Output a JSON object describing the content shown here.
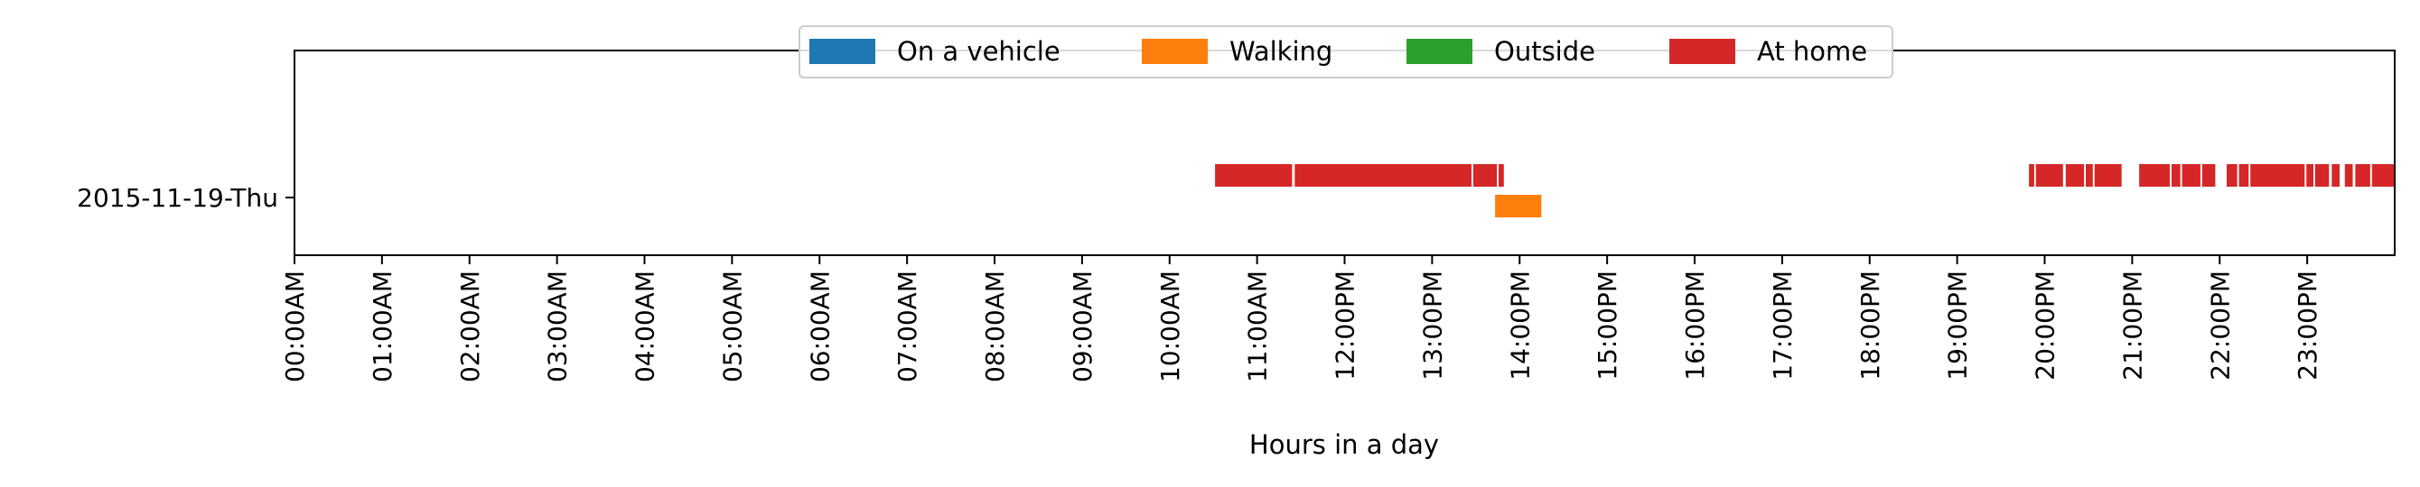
{
  "chart_data": {
    "type": "timeline",
    "xlabel": "Hours in a day",
    "ylabel": "",
    "xlim": [
      0,
      24
    ],
    "rows": [
      "2015-11-19-Thu"
    ],
    "x_ticks": [
      {
        "value": 0,
        "label": "00:00AM"
      },
      {
        "value": 1,
        "label": "01:00AM"
      },
      {
        "value": 2,
        "label": "02:00AM"
      },
      {
        "value": 3,
        "label": "03:00AM"
      },
      {
        "value": 4,
        "label": "04:00AM"
      },
      {
        "value": 5,
        "label": "05:00AM"
      },
      {
        "value": 6,
        "label": "06:00AM"
      },
      {
        "value": 7,
        "label": "07:00AM"
      },
      {
        "value": 8,
        "label": "08:00AM"
      },
      {
        "value": 9,
        "label": "09:00AM"
      },
      {
        "value": 10,
        "label": "10:00AM"
      },
      {
        "value": 11,
        "label": "11:00AM"
      },
      {
        "value": 12,
        "label": "12:00PM"
      },
      {
        "value": 13,
        "label": "13:00PM"
      },
      {
        "value": 14,
        "label": "14:00PM"
      },
      {
        "value": 15,
        "label": "15:00PM"
      },
      {
        "value": 16,
        "label": "16:00PM"
      },
      {
        "value": 17,
        "label": "17:00PM"
      },
      {
        "value": 18,
        "label": "18:00PM"
      },
      {
        "value": 19,
        "label": "19:00PM"
      },
      {
        "value": 20,
        "label": "20:00PM"
      },
      {
        "value": 21,
        "label": "21:00PM"
      },
      {
        "value": 22,
        "label": "22:00PM"
      },
      {
        "value": 23,
        "label": "23:00PM"
      }
    ],
    "legend_position": "top-center",
    "series": [
      {
        "name": "On a vehicle",
        "color": "#1f77b4",
        "lane": "upper",
        "segments": []
      },
      {
        "name": "Walking",
        "color": "#ff7f0e",
        "lane": "lower",
        "segments": [
          [
            13.72,
            14.25
          ]
        ]
      },
      {
        "name": "Outside",
        "color": "#2ca02c",
        "lane": "upper",
        "segments": []
      },
      {
        "name": "At home",
        "color": "#d62728",
        "lane": "upper",
        "segments": [
          [
            10.52,
            11.4
          ],
          [
            11.43,
            13.45
          ],
          [
            13.47,
            13.74
          ],
          [
            13.76,
            13.82
          ],
          [
            19.82,
            19.88
          ],
          [
            19.9,
            20.21
          ],
          [
            20.24,
            20.45
          ],
          [
            20.47,
            20.55
          ],
          [
            20.57,
            20.88
          ],
          [
            21.08,
            21.43
          ],
          [
            21.45,
            21.55
          ],
          [
            21.57,
            21.78
          ],
          [
            21.8,
            21.95
          ],
          [
            22.08,
            22.2
          ],
          [
            22.22,
            22.33
          ],
          [
            22.35,
            22.97
          ],
          [
            22.99,
            23.07
          ],
          [
            23.09,
            23.25
          ],
          [
            23.28,
            23.37
          ],
          [
            23.43,
            23.52
          ],
          [
            23.55,
            23.72
          ],
          [
            23.74,
            24.0
          ]
        ]
      }
    ],
    "grid": false
  }
}
